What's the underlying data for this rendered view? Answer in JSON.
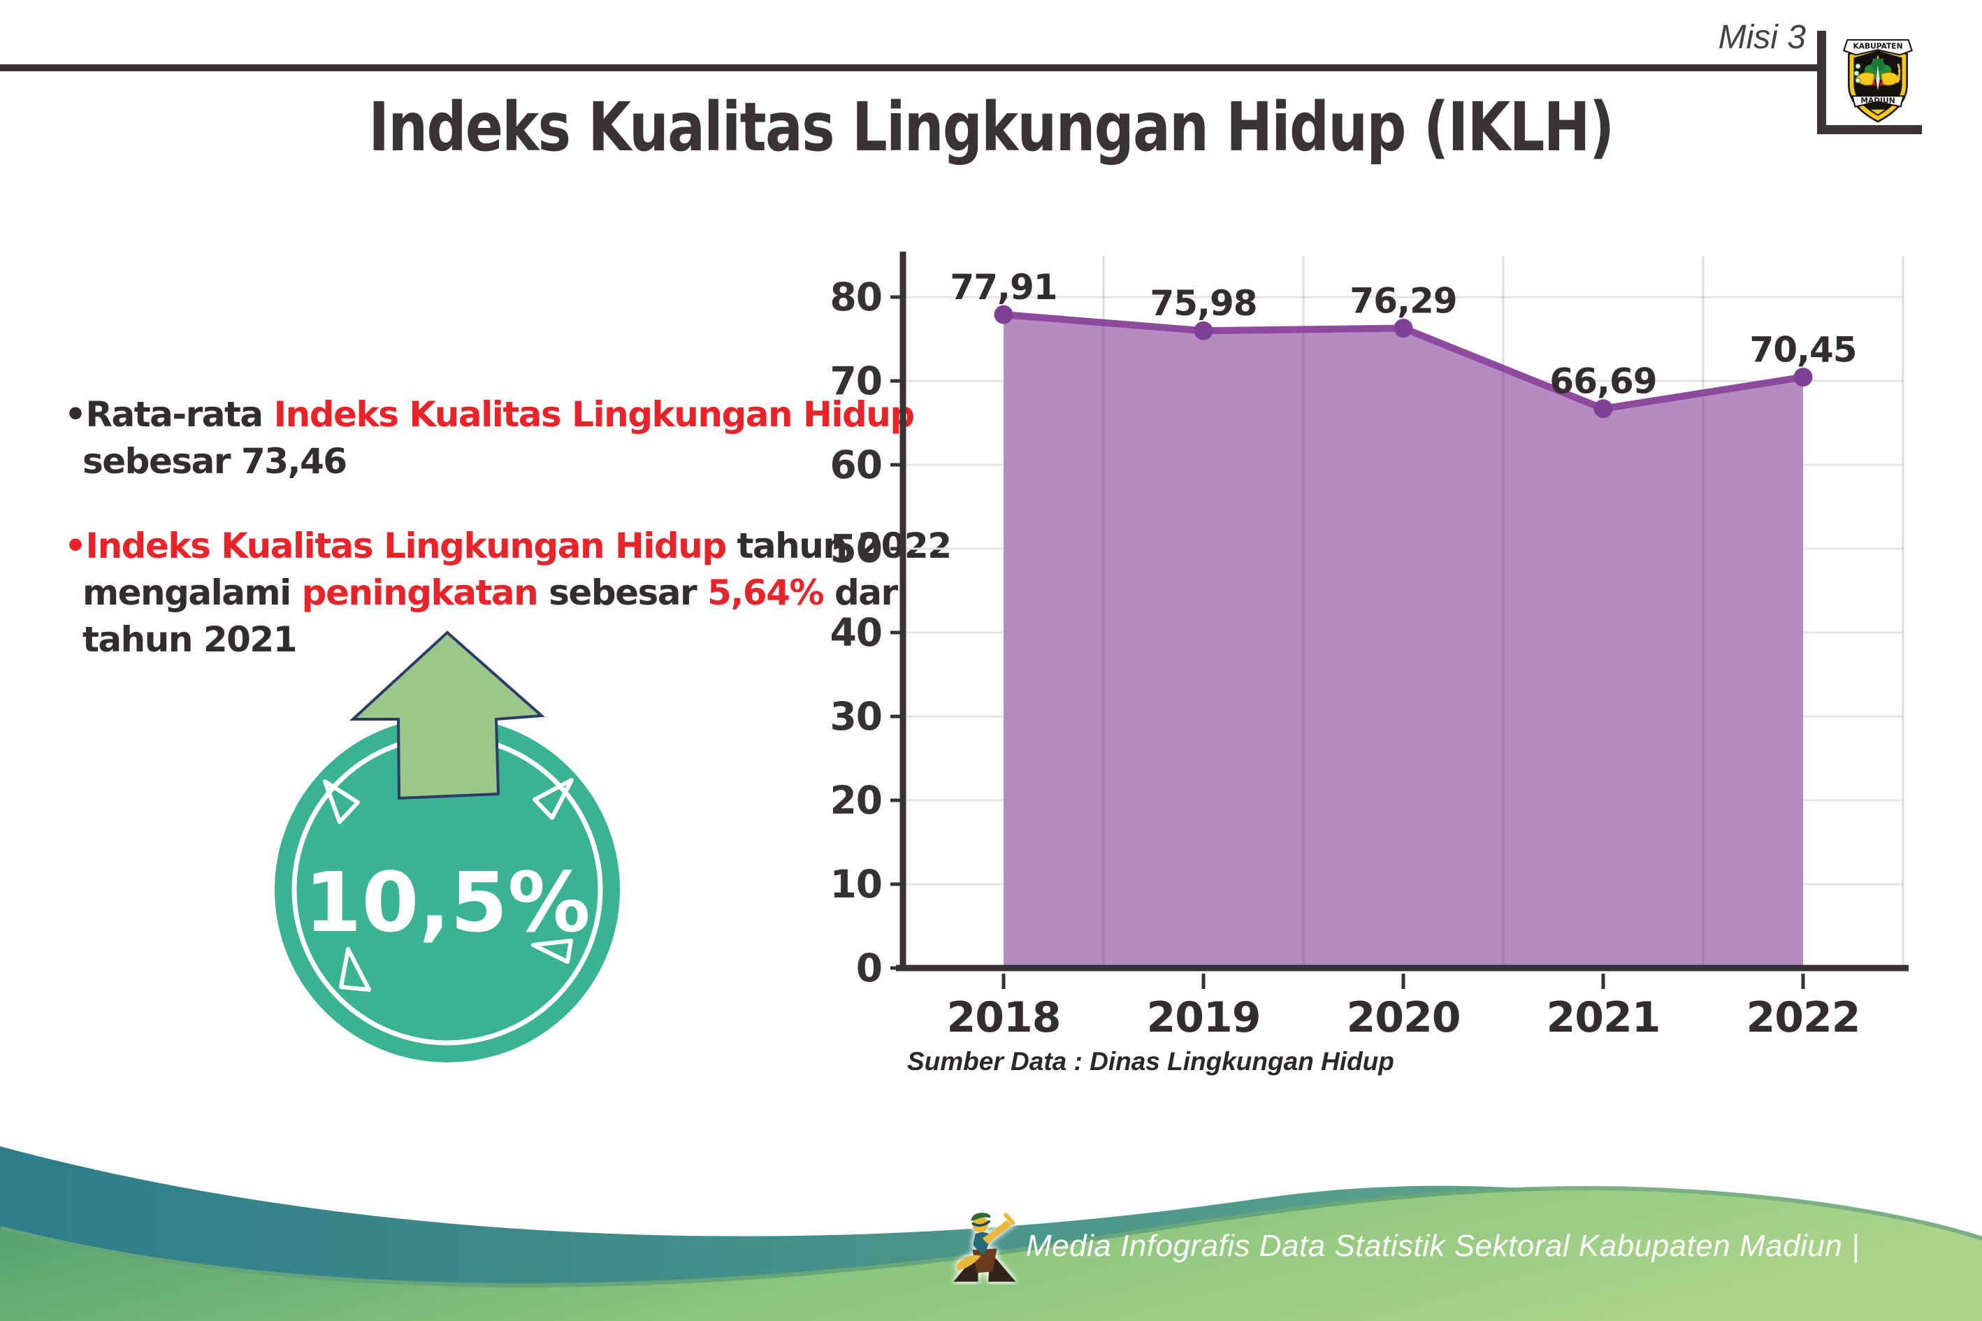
{
  "header": {
    "misi_label": "Misi 3",
    "title": "Indeks Kualitas Lingkungan Hidup (IKLH)",
    "logo": {
      "top_text": "KABUPATEN",
      "bottom_text": "MADIUN"
    }
  },
  "insights": {
    "bullet_glyph": "•",
    "b1": {
      "dark1": "Rata-rata ",
      "red1": "Indeks Kualitas Lingkungan Hidup",
      "line2": "sebesar 73,46"
    },
    "b2": {
      "red1": "Indeks Kualitas Lingkungan Hidup",
      "dark1": " tahun 2022",
      "l2_dark1": "mengalami ",
      "l2_red1": "peningkatan",
      "l2_dark2": " sebesar ",
      "l2_red2": "5,64%",
      "l2_dark3": " dari",
      "line3": "tahun 2021"
    }
  },
  "badge": {
    "value_label": "10,5%"
  },
  "chart_data": {
    "type": "area",
    "title": "",
    "categories": [
      "2018",
      "2019",
      "2020",
      "2021",
      "2022"
    ],
    "values": [
      77.91,
      75.98,
      76.29,
      66.69,
      70.45
    ],
    "point_labels": [
      "77,91",
      "75,98",
      "76,29",
      "66,69",
      "70,45"
    ],
    "xlabel": "",
    "ylabel": "",
    "ylim": [
      0,
      80
    ],
    "yticks": [
      0,
      10,
      20,
      30,
      40,
      50,
      60,
      70,
      80
    ],
    "grid": true,
    "legend": "none",
    "source_note": "Sumber Data : Dinas Lingkungan Hidup"
  },
  "footer": {
    "credit": "Media Infografis Data Statistik Sektoral Kabupaten Madiun |"
  },
  "colors": {
    "accent_red": "#e8242b",
    "text_dark": "#332d2f",
    "title_dark": "#3a3234",
    "axis": "#383134",
    "gridline": "#e4e2e4",
    "category_line": "rgba(70,62,72,0.18)",
    "chart_area": "#b58cc2",
    "chart_line": "#8d4a9e",
    "chart_dot": "#7e4195",
    "badge_teal": "#3ab394",
    "arrow_green": "#9cc78b",
    "arrow_outline": "#2d3c66",
    "wave_teal_start": "#2e7d89",
    "wave_teal_end": "#68ac8c",
    "wave_green_start": "#4d9e6d",
    "wave_green_mid": "#8cc57e",
    "wave_green_end": "#a9d389"
  }
}
